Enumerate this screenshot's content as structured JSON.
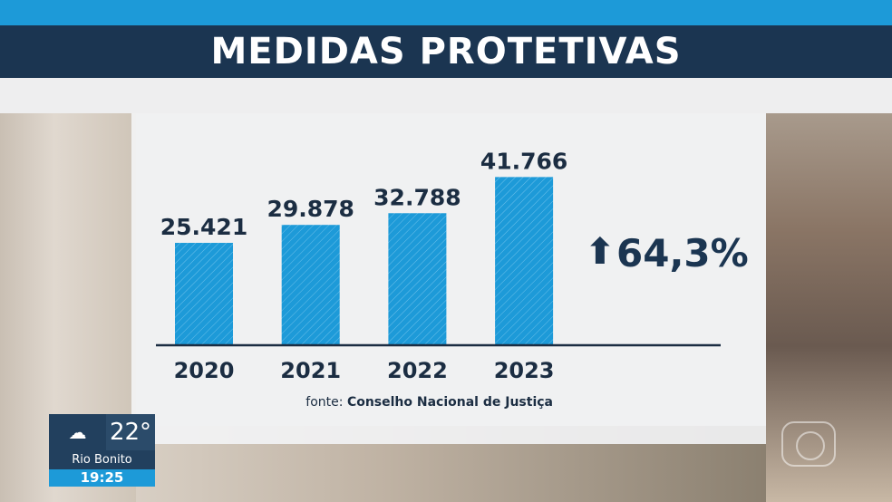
{
  "title": "MEDIDAS PROTETIVAS",
  "growth": {
    "arrow": "⬆",
    "value": "64,3%"
  },
  "source": {
    "prefix": "fonte:",
    "name": "Conselho Nacional de Justiça"
  },
  "weather": {
    "icon": "night-cloud-icon",
    "glyph": "☁",
    "temperature": "22°",
    "city": "Rio Bonito",
    "time": "19:25"
  },
  "colors": {
    "bar": "#1d9ad8",
    "navy": "#1b3551"
  },
  "chart_data": {
    "type": "bar",
    "title": "MEDIDAS PROTETIVAS",
    "categories": [
      "2020",
      "2021",
      "2022",
      "2023"
    ],
    "values": [
      25421,
      29878,
      32788,
      41766
    ],
    "labels": [
      "25.421",
      "29.878",
      "32.788",
      "41.766"
    ],
    "xlabel": "",
    "ylabel": "",
    "ylim": [
      0,
      45000
    ],
    "grid": false,
    "legend": "none"
  }
}
